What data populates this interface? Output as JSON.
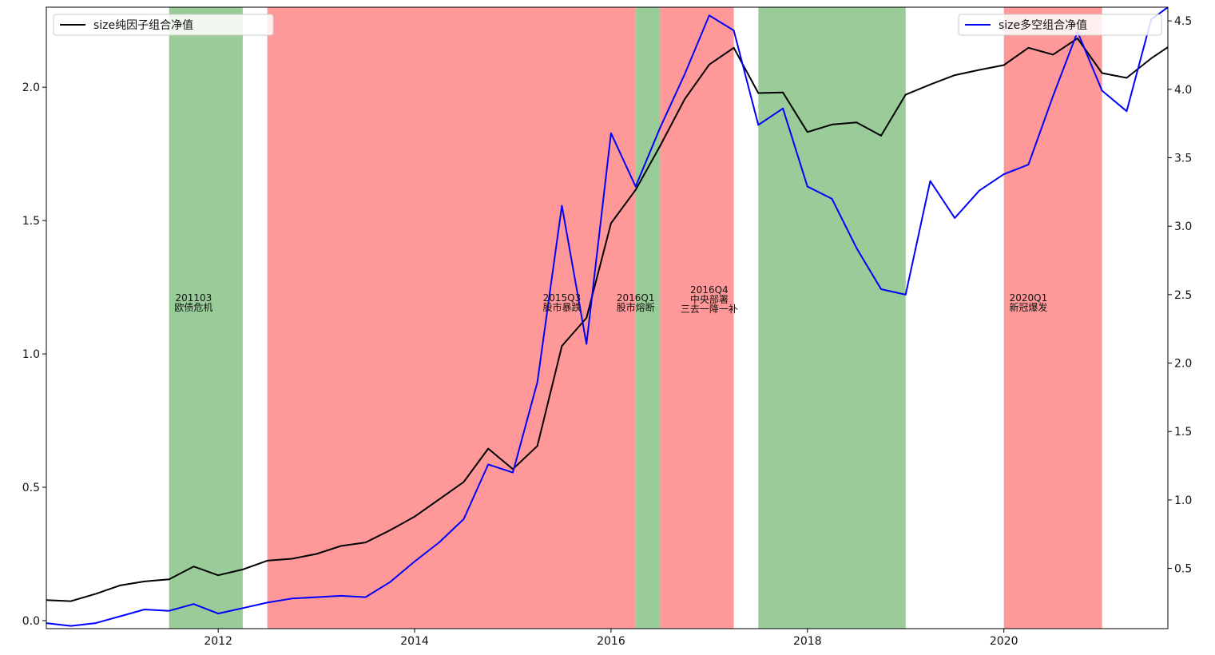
{
  "chart_data": {
    "type": "line",
    "title": "",
    "x_range": [
      2010.25,
      2021.67
    ],
    "left_axis": {
      "ylim": [
        -0.03,
        2.3
      ],
      "ticks": [
        0.0,
        0.5,
        1.0,
        1.5,
        2.0
      ],
      "tick_labels": [
        "0.0",
        "0.5",
        "1.0",
        "1.5",
        "2.0"
      ]
    },
    "right_axis": {
      "ylim": [
        0.06,
        4.6
      ],
      "ticks": [
        0.5,
        1.0,
        1.5,
        2.0,
        2.5,
        3.0,
        3.5,
        4.0,
        4.5
      ],
      "tick_labels": [
        "0.5",
        "1.0",
        "1.5",
        "2.0",
        "2.5",
        "3.0",
        "3.5",
        "4.0",
        "4.5"
      ]
    },
    "x_ticks": [
      2012,
      2014,
      2016,
      2018,
      2020
    ],
    "x_tick_labels": [
      "2012",
      "2014",
      "2016",
      "2018",
      "2020"
    ],
    "grid": false,
    "regimes": [
      {
        "start": 2011.5,
        "end": 2012.25,
        "color": "#99cc99"
      },
      {
        "start": 2012.5,
        "end": 2016.25,
        "color": "#ff9999"
      },
      {
        "start": 2016.25,
        "end": 2016.5,
        "color": "#99cc99"
      },
      {
        "start": 2016.5,
        "end": 2017.25,
        "color": "#ff9999"
      },
      {
        "start": 2017.5,
        "end": 2019.0,
        "color": "#99cc99"
      },
      {
        "start": 2020.0,
        "end": 2021.0,
        "color": "#ff9999"
      }
    ],
    "annotations": [
      {
        "x": 2011.75,
        "lines": [
          "201103",
          "欧债危机"
        ]
      },
      {
        "x": 2015.5,
        "lines": [
          "2015Q3",
          "股市暴跌"
        ]
      },
      {
        "x": 2016.25,
        "lines": [
          "2016Q1",
          "股市熔断"
        ]
      },
      {
        "x": 2017.0,
        "lines": [
          "2016Q4",
          "中央部署",
          "三去一降一补"
        ]
      },
      {
        "x": 2020.25,
        "lines": [
          "2020Q1",
          "新冠爆发"
        ]
      }
    ],
    "series": [
      {
        "name": "size纯因子组合净值",
        "axis": "left",
        "color": "#000000",
        "x": [
          2010.25,
          2010.5,
          2010.75,
          2011.0,
          2011.25,
          2011.5,
          2011.75,
          2012.0,
          2012.25,
          2012.5,
          2012.75,
          2013.0,
          2013.25,
          2013.5,
          2013.75,
          2014.0,
          2014.25,
          2014.5,
          2014.75,
          2015.0,
          2015.25,
          2015.5,
          2015.75,
          2016.0,
          2016.25,
          2016.5,
          2016.75,
          2017.0,
          2017.25,
          2017.5,
          2017.75,
          2018.0,
          2018.25,
          2018.5,
          2018.75,
          2019.0,
          2019.25,
          2019.5,
          2019.75,
          2020.0,
          2020.25,
          2020.5,
          2020.75,
          2021.0,
          2021.25,
          2021.5,
          2021.67
        ],
        "y": [
          0.077,
          0.073,
          0.1,
          0.132,
          0.147,
          0.155,
          0.203,
          0.17,
          0.192,
          0.225,
          0.232,
          0.25,
          0.28,
          0.293,
          0.339,
          0.39,
          0.455,
          0.52,
          0.645,
          0.568,
          0.655,
          1.03,
          1.135,
          1.49,
          1.615,
          1.78,
          1.955,
          2.085,
          2.148,
          1.978,
          1.98,
          1.832,
          1.86,
          1.868,
          1.818,
          1.972,
          2.01,
          2.045,
          2.065,
          2.083,
          2.148,
          2.122,
          2.183,
          2.053,
          2.035,
          2.108,
          2.15
        ]
      },
      {
        "name": "size多空组合净值",
        "axis": "right",
        "color": "#0000ff",
        "x": [
          2010.25,
          2010.5,
          2010.75,
          2011.0,
          2011.25,
          2011.5,
          2011.75,
          2012.0,
          2012.25,
          2012.5,
          2012.75,
          2013.0,
          2013.25,
          2013.5,
          2013.75,
          2014.0,
          2014.25,
          2014.5,
          2014.75,
          2015.0,
          2015.25,
          2015.5,
          2015.75,
          2016.0,
          2016.25,
          2016.5,
          2016.75,
          2017.0,
          2017.25,
          2017.5,
          2017.75,
          2018.0,
          2018.25,
          2018.5,
          2018.75,
          2019.0,
          2019.25,
          2019.5,
          2019.75,
          2020.0,
          2020.25,
          2020.5,
          2020.75,
          2021.0,
          2021.25,
          2021.5,
          2021.67
        ],
        "y": [
          0.1,
          0.08,
          0.1,
          0.15,
          0.2,
          0.19,
          0.24,
          0.17,
          0.21,
          0.25,
          0.28,
          0.29,
          0.3,
          0.29,
          0.4,
          0.55,
          0.69,
          0.86,
          1.26,
          1.2,
          1.86,
          3.15,
          2.14,
          3.68,
          3.29,
          3.72,
          4.11,
          4.54,
          4.43,
          3.74,
          3.86,
          3.29,
          3.2,
          2.84,
          2.54,
          2.5,
          3.33,
          3.06,
          3.26,
          3.38,
          3.45,
          3.95,
          4.42,
          3.99,
          3.84,
          4.51,
          4.6
        ]
      }
    ]
  }
}
